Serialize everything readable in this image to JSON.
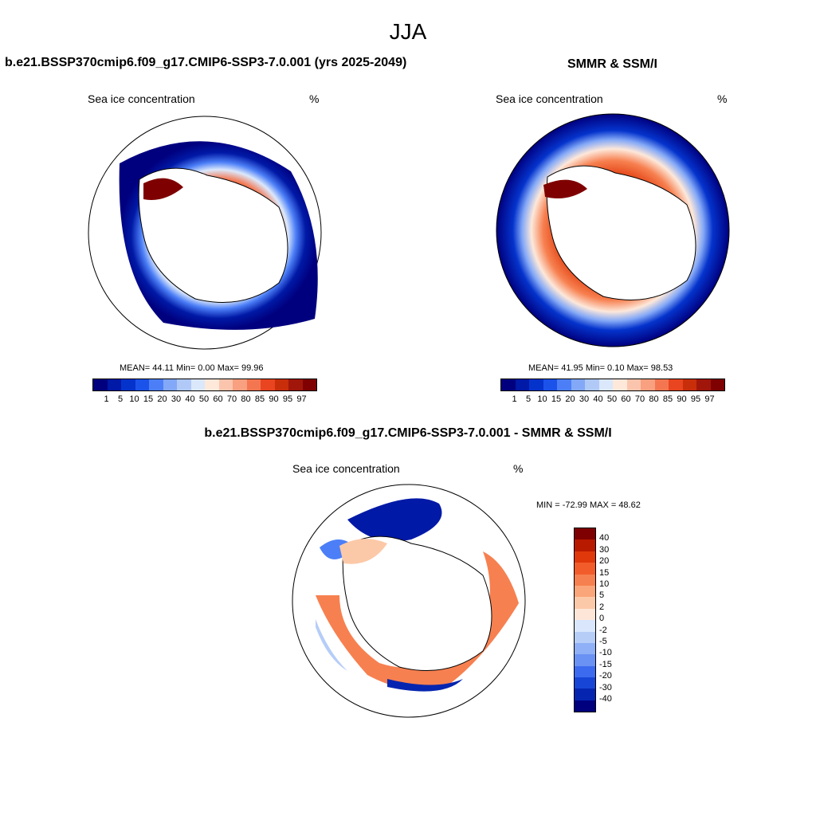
{
  "title": "JJA",
  "panels": [
    {
      "title": "b.e21.BSSP370cmip6.f09_g17.CMIP6-SSP3-7.0.001 (yrs 2025-2049)",
      "subtitle": "Sea ice concentration",
      "units": "%",
      "stats": "MEAN=  44.11  Min=   0.00  Max=  99.96"
    },
    {
      "title": "SMMR & SSM/I",
      "subtitle": "Sea ice concentration",
      "units": "%",
      "stats": "MEAN=  41.95  Min=   0.10  Max=  98.53"
    },
    {
      "title": "b.e21.BSSP370cmip6.f09_g17.CMIP6-SSP3-7.0.001 - SMMR & SSM/I",
      "subtitle": "Sea ice concentration",
      "units": "%",
      "stats": "MIN = -72.99 MAX =  48.62"
    }
  ],
  "colorbar_concentration": {
    "labels": [
      "1",
      "5",
      "10",
      "15",
      "20",
      "30",
      "40",
      "50",
      "60",
      "70",
      "80",
      "85",
      "90",
      "95",
      "97"
    ],
    "colors": [
      "#00007f",
      "#0019a6",
      "#0433cc",
      "#1b52ea",
      "#4c7ff7",
      "#83a8f7",
      "#b0c9f7",
      "#dbe8fb",
      "#fde8da",
      "#fbc5ad",
      "#f8a080",
      "#f47650",
      "#e84520",
      "#c82e0a",
      "#a0160a",
      "#7f0000"
    ]
  },
  "colorbar_difference": {
    "labels": [
      "40",
      "30",
      "20",
      "15",
      "10",
      "5",
      "2",
      "0",
      "-2",
      "-5",
      "-10",
      "-15",
      "-20",
      "-30",
      "-40"
    ],
    "colors": [
      "#7f0000",
      "#b81a00",
      "#e0380a",
      "#f25c2a",
      "#f78050",
      "#faa67a",
      "#fcc9a8",
      "#fde6d8",
      "#d9e6fb",
      "#b6cdf8",
      "#8fb0f6",
      "#6a92f4",
      "#3c6bef",
      "#1746d6",
      "#0525b0",
      "#00007f"
    ]
  },
  "map_colors": {
    "ocean_bg": "#ffffff",
    "land": "#ffffff",
    "coast": "#000000"
  }
}
